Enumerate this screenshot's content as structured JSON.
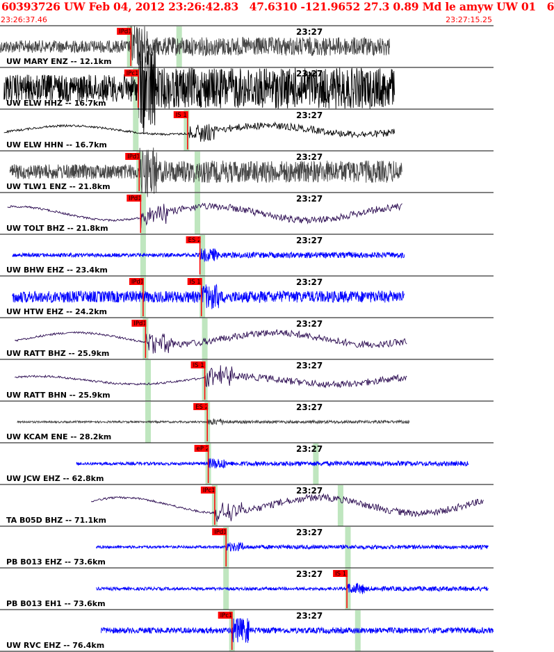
{
  "header": {
    "title": "60393726 UW Feb 04, 2012 23:26:42.83   47.6310 -121.9652 27.3 0.89 Md le amyw UW 01   6",
    "start_time": "23:26:37.46",
    "end_time": "23:27:15.25"
  },
  "colors": {
    "header_text": "#ff0000",
    "pick_box": "#ff0000",
    "pick_window": "#bfe6bf",
    "trace_black": "#000000",
    "trace_gray": "#444444",
    "trace_purple": "#2a0a50",
    "trace_blue": "#0000ff"
  },
  "chart_data": {
    "type": "seismogram",
    "time_marker": "23:27",
    "traces": [
      {
        "label": "UW MARY ENZ -- 12.1km",
        "color": "#444444",
        "kind": "noise",
        "amp": 0.32,
        "start": 0.0,
        "end": 0.79,
        "onset": 0.265,
        "picks": [
          {
            "label": "IPd1",
            "pos": 0.265
          }
        ],
        "windows": [
          0.263,
          0.363
        ]
      },
      {
        "label": "UW ELW HHZ -- 16.7km",
        "color": "#000000",
        "kind": "noise",
        "amp": 0.7,
        "start": 0.008,
        "end": 0.8,
        "onset": 0.28,
        "picks": [
          {
            "label": "IPc1",
            "pos": 0.28
          }
        ],
        "windows": [
          0.275
        ]
      },
      {
        "label": "UW ELW HHN -- 16.7km",
        "color": "#000000",
        "kind": "wave",
        "amp": 0.22,
        "start": 0.008,
        "end": 0.8,
        "onset": 0.38,
        "picks": [
          {
            "label": "IS 1",
            "pos": 0.38
          }
        ],
        "windows": [
          0.275,
          0.378
        ]
      },
      {
        "label": "UW TLW1 ENZ -- 21.8km",
        "color": "#444444",
        "kind": "noise",
        "amp": 0.38,
        "start": 0.02,
        "end": 0.815,
        "onset": 0.282,
        "picks": [
          {
            "label": "IPd1",
            "pos": 0.282
          }
        ],
        "windows": [
          0.282,
          0.4
        ]
      },
      {
        "label": "UW TOLT BHZ -- 21.8km",
        "color": "#2a0a50",
        "kind": "wave",
        "amp": 0.35,
        "start": 0.015,
        "end": 0.815,
        "onset": 0.285,
        "picks": [
          {
            "label": "IPd1",
            "pos": 0.285
          }
        ],
        "windows": [
          0.29,
          0.4
        ]
      },
      {
        "label": "UW BHW EHZ -- 23.4km",
        "color": "#0000ff",
        "kind": "noise",
        "amp": 0.1,
        "start": 0.025,
        "end": 0.82,
        "onset": 0.405,
        "picks": [
          {
            "label": "ES 2",
            "pos": 0.405
          }
        ],
        "windows": [
          0.29,
          0.41
        ]
      },
      {
        "label": "UW HTW EHZ -- 24.2km",
        "color": "#0000ff",
        "kind": "flat",
        "amp": 0.03,
        "start": 0.025,
        "end": 0.82,
        "onset": 0.408,
        "picks": [
          {
            "label": "IPd1",
            "pos": 0.29
          },
          {
            "label": "IS 1",
            "pos": 0.408
          }
        ],
        "windows": [
          0.29,
          0.41
        ]
      },
      {
        "label": "UW RATT BHZ -- 25.9km",
        "color": "#2a0a50",
        "kind": "wave",
        "amp": 0.3,
        "start": 0.03,
        "end": 0.825,
        "onset": 0.295,
        "picks": [
          {
            "label": "IPd1",
            "pos": 0.295
          }
        ],
        "windows": [
          0.295,
          0.415
        ]
      },
      {
        "label": "UW RATT BHN -- 25.9km",
        "color": "#2a0a50",
        "kind": "wave",
        "amp": 0.2,
        "start": 0.03,
        "end": 0.825,
        "onset": 0.415,
        "picks": [
          {
            "label": "IS 1",
            "pos": 0.415
          }
        ],
        "windows": [
          0.3,
          0.415
        ]
      },
      {
        "label": "UW KCAM ENE -- 28.2km",
        "color": "#444444",
        "kind": "noise",
        "amp": 0.05,
        "start": 0.035,
        "end": 0.83,
        "onset": 0.42,
        "picks": [
          {
            "label": "ES 2",
            "pos": 0.42
          }
        ],
        "windows": [
          0.3,
          0.42
        ]
      },
      {
        "label": "UW JCW EHZ -- 62.8km",
        "color": "#0000ff",
        "kind": "noise",
        "amp": 0.08,
        "start": 0.155,
        "end": 0.95,
        "onset": 0.422,
        "picks": [
          {
            "label": "eP 2",
            "pos": 0.422
          }
        ],
        "windows": [
          0.422,
          0.64
        ]
      },
      {
        "label": "TA B05D BHZ -- 71.1km",
        "color": "#2a0a50",
        "kind": "wave",
        "amp": 0.4,
        "start": 0.185,
        "end": 0.98,
        "onset": 0.435,
        "picks": [
          {
            "label": "IPc1",
            "pos": 0.435
          }
        ],
        "windows": [
          0.435,
          0.69
        ]
      },
      {
        "label": "PB B013 EHZ -- 73.6km",
        "color": "#0000ff",
        "kind": "noise",
        "amp": 0.07,
        "start": 0.195,
        "end": 0.99,
        "onset": 0.458,
        "picks": [
          {
            "label": "IPd1",
            "pos": 0.458
          }
        ],
        "windows": [
          0.458,
          0.705
        ]
      },
      {
        "label": "PB B013 EH1 -- 73.6km",
        "color": "#0000ff",
        "kind": "noise",
        "amp": 0.08,
        "start": 0.195,
        "end": 0.99,
        "onset": 0.703,
        "picks": [
          {
            "label": "IS 1",
            "pos": 0.703
          }
        ],
        "windows": [
          0.458,
          0.705
        ]
      },
      {
        "label": "UW RVC EHZ -- 76.4km",
        "color": "#0000ff",
        "kind": "flat",
        "amp": 0.015,
        "start": 0.205,
        "end": 1.0,
        "onset": 0.47,
        "picks": [
          {
            "label": "IPc1",
            "pos": 0.47
          }
        ],
        "windows": [
          0.47,
          0.725
        ]
      }
    ]
  }
}
